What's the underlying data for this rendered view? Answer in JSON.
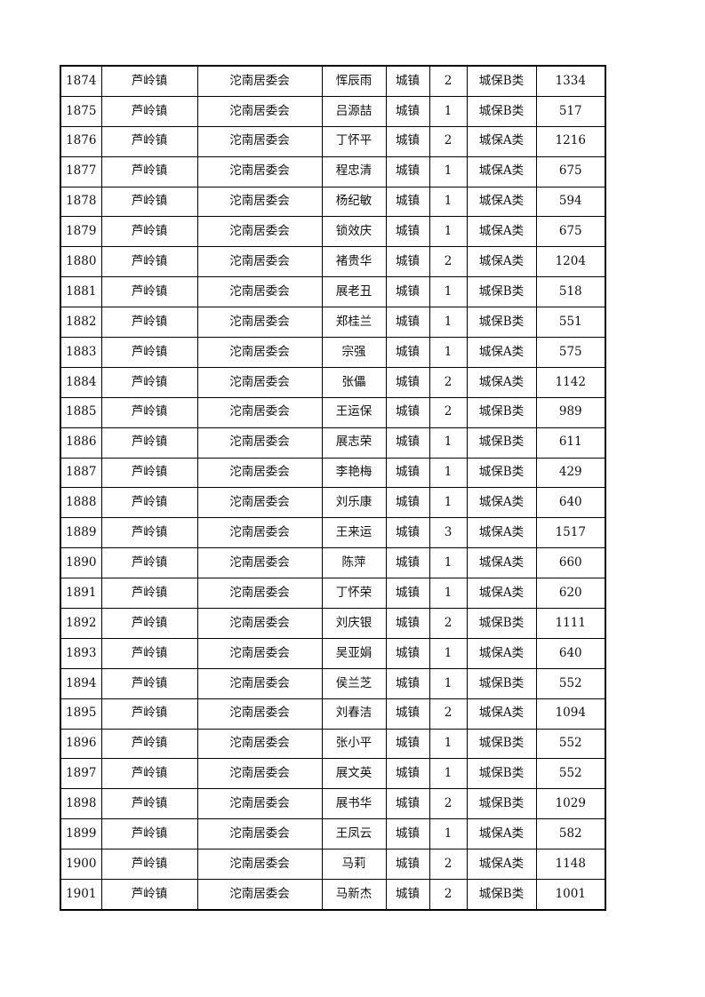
{
  "rows": [
    [
      "1874",
      "芦岭镇",
      "沱南居委会",
      "恽辰雨",
      "城镇",
      "2",
      "城保B类",
      "1334"
    ],
    [
      "1875",
      "芦岭镇",
      "沱南居委会",
      "吕源喆",
      "城镇",
      "1",
      "城保B类",
      "517"
    ],
    [
      "1876",
      "芦岭镇",
      "沱南居委会",
      "丁怀平",
      "城镇",
      "2",
      "城保A类",
      "1216"
    ],
    [
      "1877",
      "芦岭镇",
      "沱南居委会",
      "程忠清",
      "城镇",
      "1",
      "城保A类",
      "675"
    ],
    [
      "1878",
      "芦岭镇",
      "沱南居委会",
      "杨纪敏",
      "城镇",
      "1",
      "城保A类",
      "594"
    ],
    [
      "1879",
      "芦岭镇",
      "沱南居委会",
      "锁效庆",
      "城镇",
      "1",
      "城保A类",
      "675"
    ],
    [
      "1880",
      "芦岭镇",
      "沱南居委会",
      "褚贵华",
      "城镇",
      "2",
      "城保A类",
      "1204"
    ],
    [
      "1881",
      "芦岭镇",
      "沱南居委会",
      "展老丑",
      "城镇",
      "1",
      "城保B类",
      "518"
    ],
    [
      "1882",
      "芦岭镇",
      "沱南居委会",
      "郑桂兰",
      "城镇",
      "1",
      "城保B类",
      "551"
    ],
    [
      "1883",
      "芦岭镇",
      "沱南居委会",
      "宗强",
      "城镇",
      "1",
      "城保A类",
      "575"
    ],
    [
      "1884",
      "芦岭镇",
      "沱南居委会",
      "张儡",
      "城镇",
      "2",
      "城保A类",
      "1142"
    ],
    [
      "1885",
      "芦岭镇",
      "沱南居委会",
      "王运保",
      "城镇",
      "2",
      "城保B类",
      "989"
    ],
    [
      "1886",
      "芦岭镇",
      "沱南居委会",
      "展志荣",
      "城镇",
      "1",
      "城保B类",
      "611"
    ],
    [
      "1887",
      "芦岭镇",
      "沱南居委会",
      "李艳梅",
      "城镇",
      "1",
      "城保B类",
      "429"
    ],
    [
      "1888",
      "芦岭镇",
      "沱南居委会",
      "刘乐康",
      "城镇",
      "1",
      "城保A类",
      "640"
    ],
    [
      "1889",
      "芦岭镇",
      "沱南居委会",
      "王来运",
      "城镇",
      "3",
      "城保A类",
      "1517"
    ],
    [
      "1890",
      "芦岭镇",
      "沱南居委会",
      "陈萍",
      "城镇",
      "1",
      "城保A类",
      "660"
    ],
    [
      "1891",
      "芦岭镇",
      "沱南居委会",
      "丁怀荣",
      "城镇",
      "1",
      "城保A类",
      "620"
    ],
    [
      "1892",
      "芦岭镇",
      "沱南居委会",
      "刘庆银",
      "城镇",
      "2",
      "城保B类",
      "1111"
    ],
    [
      "1893",
      "芦岭镇",
      "沱南居委会",
      "吴亚娟",
      "城镇",
      "1",
      "城保A类",
      "640"
    ],
    [
      "1894",
      "芦岭镇",
      "沱南居委会",
      "侯兰芝",
      "城镇",
      "1",
      "城保B类",
      "552"
    ],
    [
      "1895",
      "芦岭镇",
      "沱南居委会",
      "刘春洁",
      "城镇",
      "2",
      "城保A类",
      "1094"
    ],
    [
      "1896",
      "芦岭镇",
      "沱南居委会",
      "张小平",
      "城镇",
      "1",
      "城保B类",
      "552"
    ],
    [
      "1897",
      "芦岭镇",
      "沱南居委会",
      "展文英",
      "城镇",
      "1",
      "城保B类",
      "552"
    ],
    [
      "1898",
      "芦岭镇",
      "沱南居委会",
      "展书华",
      "城镇",
      "2",
      "城保B类",
      "1029"
    ],
    [
      "1899",
      "芦岭镇",
      "沱南居委会",
      "王凤云",
      "城镇",
      "1",
      "城保A类",
      "582"
    ],
    [
      "1900",
      "芦岭镇",
      "沱南居委会",
      "马莉",
      "城镇",
      "2",
      "城保A类",
      "1148"
    ],
    [
      "1901",
      "芦岭镇",
      "沱南居委会",
      "马新杰",
      "城镇",
      "2",
      "城保B类",
      "1001"
    ]
  ]
}
